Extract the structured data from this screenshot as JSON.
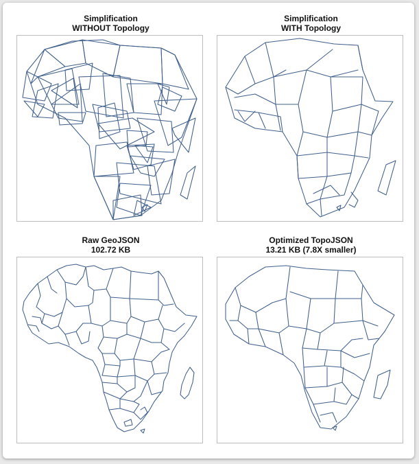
{
  "panels": {
    "top_left": {
      "title_line1": "Simplification",
      "title_line2": "WITHOUT Topology"
    },
    "top_right": {
      "title_line1": "Simplification",
      "title_line2": "WITH Topology"
    },
    "bottom_left": {
      "title_line1": "Raw GeoJSON",
      "title_line2": "102.72 KB"
    },
    "bottom_right": {
      "title_line1": "Optimized TopoJSON",
      "title_line2": "13.21 KB (7.8X smaller)"
    }
  },
  "colors": {
    "stroke": "#3f5f8c",
    "border": "#bdbdbd",
    "background": "#ffffff"
  }
}
